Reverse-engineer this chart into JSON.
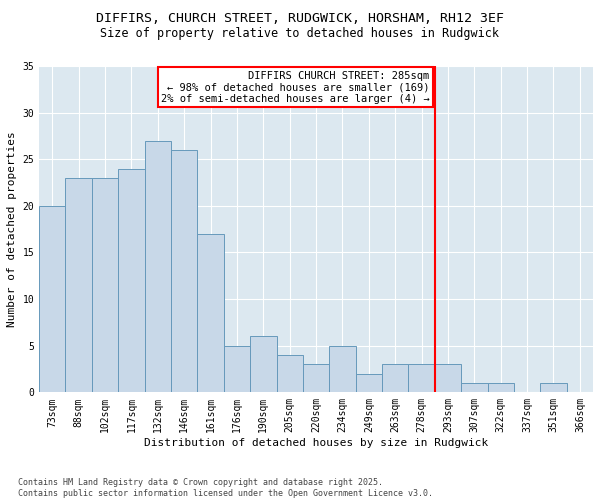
{
  "title_line1": "DIFFIRS, CHURCH STREET, RUDGWICK, HORSHAM, RH12 3EF",
  "title_line2": "Size of property relative to detached houses in Rudgwick",
  "xlabel": "Distribution of detached houses by size in Rudgwick",
  "ylabel": "Number of detached properties",
  "categories": [
    "73sqm",
    "88sqm",
    "102sqm",
    "117sqm",
    "132sqm",
    "146sqm",
    "161sqm",
    "176sqm",
    "190sqm",
    "205sqm",
    "220sqm",
    "234sqm",
    "249sqm",
    "263sqm",
    "278sqm",
    "293sqm",
    "307sqm",
    "322sqm",
    "337sqm",
    "351sqm",
    "366sqm"
  ],
  "values": [
    20,
    23,
    23,
    24,
    27,
    26,
    17,
    5,
    6,
    4,
    3,
    5,
    2,
    3,
    3,
    3,
    1,
    1,
    0,
    1,
    0
  ],
  "bar_color": "#c8d8e8",
  "bar_edge_color": "#6699bb",
  "vline_x_index": 15,
  "vline_color": "red",
  "annotation_title": "DIFFIRS CHURCH STREET: 285sqm",
  "annotation_line2": "← 98% of detached houses are smaller (169)",
  "annotation_line3": "2% of semi-detached houses are larger (4) →",
  "annotation_box_color": "white",
  "annotation_box_edge_color": "red",
  "ylim": [
    0,
    35
  ],
  "yticks": [
    0,
    5,
    10,
    15,
    20,
    25,
    30,
    35
  ],
  "background_color": "#dce8f0",
  "footer_text": "Contains HM Land Registry data © Crown copyright and database right 2025.\nContains public sector information licensed under the Open Government Licence v3.0.",
  "title_fontsize": 9.5,
  "subtitle_fontsize": 8.5,
  "axis_label_fontsize": 8,
  "tick_fontsize": 7,
  "annotation_fontsize": 7.5
}
